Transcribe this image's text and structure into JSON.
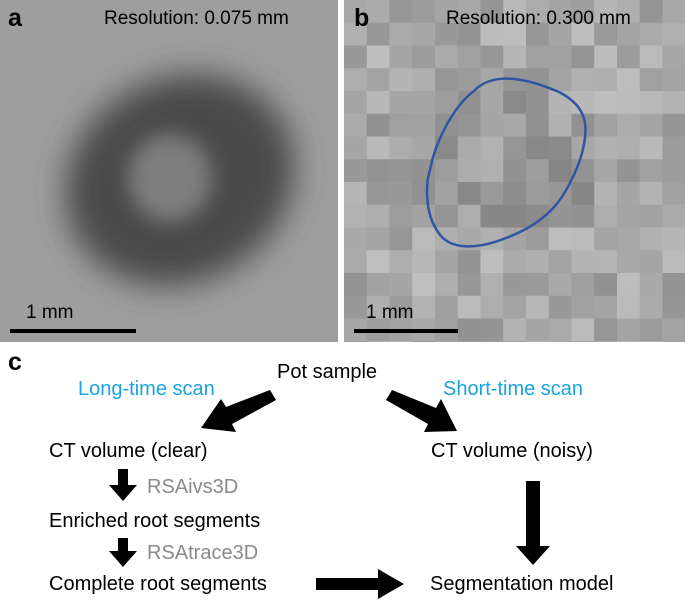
{
  "panels": {
    "a": {
      "label": "a",
      "resolution": "Resolution: 0.075 mm",
      "scale": "1 mm"
    },
    "b": {
      "label": "b",
      "resolution": "Resolution: 0.300 mm",
      "scale": "1 mm",
      "outline_color": "#2f55a4"
    },
    "c": {
      "label": "c"
    }
  },
  "flowchart": {
    "pot_sample": "Pot sample",
    "long_scan": "Long-time scan",
    "short_scan": "Short-time scan",
    "ct_clear": "CT volume (clear)",
    "ct_noisy": "CT volume (noisy)",
    "tool1": "RSAivs3D",
    "enriched": "Enriched root segments",
    "tool2": "RSAtrace3D",
    "complete": "Complete root segments",
    "model": "Segmentation model"
  },
  "colors": {
    "scan_text": "#1aa3e0",
    "tool_text": "#8a8a8a",
    "arrow": "#000000"
  }
}
